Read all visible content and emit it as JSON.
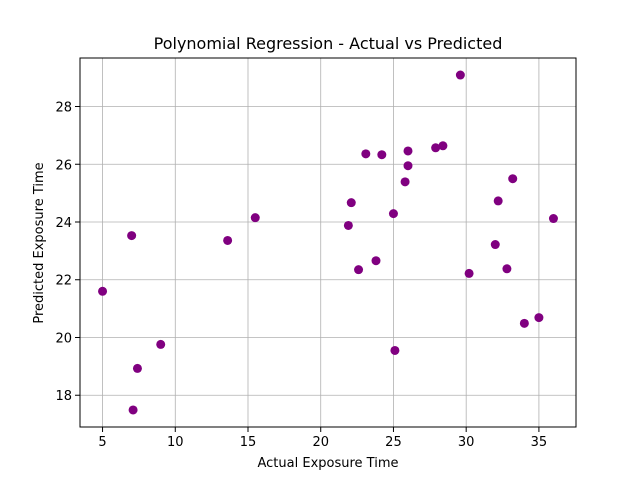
{
  "chart_data": {
    "type": "scatter",
    "title": "Polynomial Regression - Actual vs Predicted",
    "xlabel": "Actual Exposure Time",
    "ylabel": "Predicted Exposure Time",
    "xlim": [
      3.45,
      37.55
    ],
    "ylim": [
      16.9,
      29.68
    ],
    "xticks": [
      5,
      10,
      15,
      20,
      25,
      30,
      35
    ],
    "yticks": [
      18,
      20,
      22,
      24,
      26,
      28
    ],
    "grid": true,
    "series": [
      {
        "color": "#800080",
        "marker": "circle",
        "points": [
          {
            "x": 5.0,
            "y": 21.6
          },
          {
            "x": 7.0,
            "y": 23.53
          },
          {
            "x": 7.1,
            "y": 17.49
          },
          {
            "x": 7.4,
            "y": 18.93
          },
          {
            "x": 9.0,
            "y": 19.76
          },
          {
            "x": 13.6,
            "y": 23.36
          },
          {
            "x": 15.5,
            "y": 24.15
          },
          {
            "x": 21.9,
            "y": 23.88
          },
          {
            "x": 22.1,
            "y": 24.67
          },
          {
            "x": 22.6,
            "y": 22.35
          },
          {
            "x": 23.1,
            "y": 26.36
          },
          {
            "x": 23.8,
            "y": 22.66
          },
          {
            "x": 24.2,
            "y": 26.33
          },
          {
            "x": 25.0,
            "y": 24.29
          },
          {
            "x": 25.1,
            "y": 19.55
          },
          {
            "x": 25.8,
            "y": 25.39
          },
          {
            "x": 26.0,
            "y": 26.46
          },
          {
            "x": 26.0,
            "y": 25.95
          },
          {
            "x": 27.9,
            "y": 26.57
          },
          {
            "x": 28.4,
            "y": 26.64
          },
          {
            "x": 29.6,
            "y": 29.09
          },
          {
            "x": 30.2,
            "y": 22.22
          },
          {
            "x": 32.0,
            "y": 23.22
          },
          {
            "x": 32.2,
            "y": 24.73
          },
          {
            "x": 32.8,
            "y": 22.38
          },
          {
            "x": 33.2,
            "y": 25.5
          },
          {
            "x": 34.0,
            "y": 20.49
          },
          {
            "x": 35.0,
            "y": 20.69
          },
          {
            "x": 36.0,
            "y": 24.12
          }
        ]
      }
    ]
  }
}
